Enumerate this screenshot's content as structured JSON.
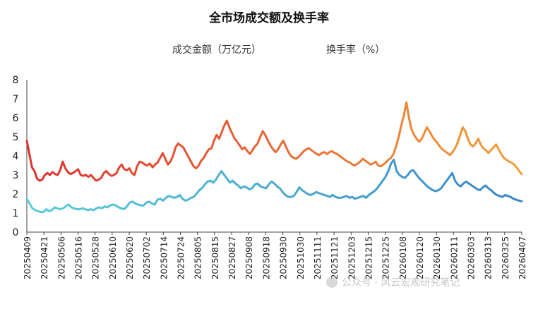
{
  "chart_data": {
    "type": "line",
    "title": "全市场成交额及换手率",
    "legend": {
      "placement": "top-center",
      "items": [
        {
          "label": "成交金额（万亿元）",
          "color_start": "#5BCFDA",
          "color_end": "#3A86C8"
        },
        {
          "label": "换手率（%）",
          "color_start": "#E03030",
          "color_end": "#F0A038"
        }
      ]
    },
    "ylim": [
      0,
      8
    ],
    "y_ticks": [
      "0",
      "1",
      "2",
      "3",
      "4",
      "5",
      "6",
      "7",
      "8"
    ],
    "grid": false,
    "x_ticks": [
      "20250409",
      "20250421",
      "20250506",
      "20250516",
      "20250528",
      "20250610",
      "20250620",
      "20250702",
      "20250714",
      "20250724",
      "20250805",
      "20250815",
      "20250827",
      "20250908",
      "20250918",
      "20250930",
      "20251030",
      "20251111",
      "20251121",
      "20251203",
      "20251215",
      "20251225",
      "20260108",
      "20260120",
      "20260130",
      "20260211",
      "20260303",
      "20260313",
      "20260325",
      "20260407"
    ],
    "series": [
      {
        "name": "成交金额（万亿元）",
        "values": [
          1.75,
          1.5,
          1.25,
          1.15,
          1.1,
          1.05,
          1.05,
          1.2,
          1.1,
          1.15,
          1.3,
          1.25,
          1.2,
          1.25,
          1.35,
          1.45,
          1.3,
          1.25,
          1.2,
          1.2,
          1.25,
          1.2,
          1.15,
          1.2,
          1.15,
          1.25,
          1.3,
          1.25,
          1.35,
          1.3,
          1.4,
          1.45,
          1.4,
          1.3,
          1.25,
          1.2,
          1.35,
          1.55,
          1.6,
          1.5,
          1.45,
          1.4,
          1.4,
          1.55,
          1.6,
          1.5,
          1.45,
          1.7,
          1.75,
          1.65,
          1.8,
          1.9,
          1.85,
          1.8,
          1.85,
          1.95,
          1.75,
          1.65,
          1.7,
          1.8,
          1.85,
          2.0,
          2.2,
          2.3,
          2.5,
          2.65,
          2.7,
          2.6,
          2.75,
          3.0,
          3.2,
          3.0,
          2.8,
          2.6,
          2.7,
          2.55,
          2.45,
          2.3,
          2.4,
          2.35,
          2.25,
          2.3,
          2.5,
          2.55,
          2.4,
          2.35,
          2.3,
          2.5,
          2.65,
          2.55,
          2.4,
          2.3,
          2.1,
          1.95,
          1.85,
          1.85,
          1.9,
          2.1,
          2.35,
          2.2,
          2.1,
          2.0,
          1.95,
          2.0,
          2.1,
          2.05,
          2.0,
          1.95,
          1.9,
          1.85,
          1.95,
          1.85,
          1.8,
          1.8,
          1.85,
          1.9,
          1.8,
          1.85,
          1.75,
          1.8,
          1.85,
          1.9,
          1.8,
          1.95,
          2.05,
          2.15,
          2.3,
          2.5,
          2.7,
          2.9,
          3.2,
          3.6,
          3.8,
          3.2,
          3.0,
          2.9,
          2.85,
          3.0,
          3.2,
          3.25,
          3.05,
          2.85,
          2.7,
          2.55,
          2.4,
          2.3,
          2.2,
          2.15,
          2.2,
          2.3,
          2.5,
          2.7,
          2.9,
          3.1,
          2.7,
          2.5,
          2.4,
          2.55,
          2.65,
          2.55,
          2.45,
          2.35,
          2.25,
          2.2,
          2.35,
          2.45,
          2.3,
          2.2,
          2.05,
          1.95,
          1.9,
          1.85,
          1.95,
          1.9,
          1.85,
          1.75,
          1.7,
          1.65,
          1.62
        ]
      },
      {
        "name": "换手率（%）",
        "values": [
          4.8,
          4.1,
          3.4,
          3.2,
          2.8,
          2.7,
          2.75,
          3.0,
          3.1,
          3.0,
          3.15,
          3.05,
          3.0,
          3.25,
          3.7,
          3.35,
          3.15,
          3.05,
          3.1,
          3.2,
          3.3,
          3.0,
          2.95,
          3.0,
          2.9,
          3.0,
          2.85,
          2.7,
          2.75,
          2.85,
          3.1,
          3.2,
          3.05,
          2.95,
          3.0,
          3.1,
          3.4,
          3.55,
          3.3,
          3.25,
          3.35,
          3.1,
          3.0,
          3.45,
          3.7,
          3.65,
          3.55,
          3.5,
          3.6,
          3.4,
          3.55,
          3.65,
          3.9,
          4.15,
          3.85,
          3.55,
          3.7,
          4.0,
          4.45,
          4.65,
          4.55,
          4.45,
          4.2,
          3.95,
          3.7,
          3.45,
          3.35,
          3.5,
          3.75,
          3.9,
          4.15,
          4.35,
          4.4,
          4.8,
          5.1,
          4.9,
          5.25,
          5.6,
          5.85,
          5.5,
          5.2,
          4.9,
          4.75,
          4.55,
          4.35,
          4.45,
          4.25,
          4.1,
          4.3,
          4.5,
          4.65,
          5.0,
          5.3,
          5.1,
          4.8,
          4.55,
          4.35,
          4.2,
          4.35,
          4.6,
          4.8,
          4.5,
          4.2,
          4.0,
          3.9,
          3.85,
          3.95,
          4.1,
          4.25,
          4.35,
          4.4,
          4.3,
          4.2,
          4.1,
          4.05,
          4.15,
          4.2,
          4.1,
          4.2,
          4.25,
          4.15,
          4.1,
          4.0,
          3.9,
          3.8,
          3.7,
          3.65,
          3.55,
          3.5,
          3.6,
          3.7,
          3.85,
          3.75,
          3.65,
          3.55,
          3.6,
          3.7,
          3.5,
          3.45,
          3.55,
          3.65,
          3.8,
          3.9,
          4.1,
          4.5,
          5.0,
          5.6,
          6.1,
          6.8,
          6.0,
          5.4,
          5.1,
          4.9,
          4.75,
          4.9,
          5.2,
          5.5,
          5.3,
          5.05,
          4.85,
          4.7,
          4.5,
          4.35,
          4.25,
          4.15,
          4.05,
          4.2,
          4.4,
          4.7,
          5.1,
          5.5,
          5.3,
          4.9,
          4.6,
          4.5,
          4.65,
          4.9,
          4.6,
          4.4,
          4.3,
          4.15,
          4.3,
          4.45,
          4.6,
          4.35,
          4.1,
          3.9,
          3.8,
          3.7,
          3.65,
          3.55,
          3.4,
          3.2,
          3.05
        ]
      }
    ]
  },
  "watermark": "公众号 · 风云宏观研究笔记"
}
